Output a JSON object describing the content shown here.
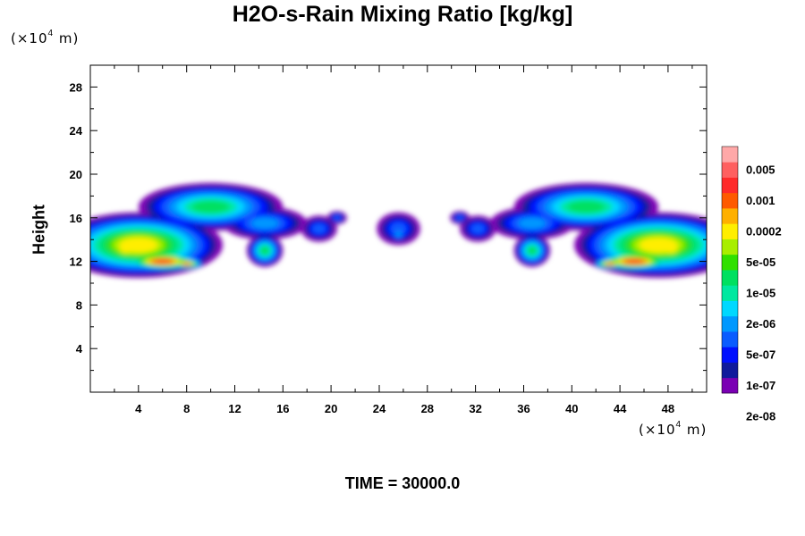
{
  "chart_data": {
    "type": "contour",
    "title": "H2O-s-Rain Mixing Ratio [kg/kg]",
    "ylabel": "Height",
    "xlabel": "",
    "x_unit": "(×10⁴ m)",
    "y_unit": "(×10⁴ m)",
    "unit_base": "(×10",
    "unit_exp": "4",
    "unit_tail": " m)",
    "xlim": [
      0,
      51.2
    ],
    "ylim": [
      0,
      30
    ],
    "xticks": [
      4,
      8,
      12,
      16,
      20,
      24,
      28,
      32,
      36,
      40,
      44,
      48
    ],
    "yticks": [
      4,
      8,
      12,
      16,
      20,
      24,
      28
    ],
    "colorbar": {
      "labels": [
        "0.005",
        "0.001",
        "0.0002",
        "5e-05",
        "1e-05",
        "2e-06",
        "5e-07",
        "1e-07",
        "2e-08"
      ],
      "colors": [
        "#7a00b3",
        "#101a9c",
        "#0010ff",
        "#0a5cff",
        "#0098ff",
        "#00d8ff",
        "#00e8a0",
        "#00e060",
        "#30e000",
        "#a8ee00",
        "#ffee00",
        "#ffb000",
        "#ff5a00",
        "#ff2a2a",
        "#ff6060",
        "#ffa8a8"
      ]
    },
    "cloud_blobs": [
      {
        "x": 4,
        "y": 13.5,
        "rx": 7,
        "ry": 3,
        "level": 10
      },
      {
        "x": 3,
        "y": 13.2,
        "rx": 2.5,
        "ry": 1.8,
        "level": 10
      },
      {
        "x": 6,
        "y": 12,
        "rx": 3.5,
        "ry": 0.9,
        "level": 13
      },
      {
        "x": 8,
        "y": 11.8,
        "rx": 1.5,
        "ry": 0.5,
        "level": 12
      },
      {
        "x": 10,
        "y": 17,
        "rx": 6,
        "ry": 2.2,
        "level": 7
      },
      {
        "x": 14.5,
        "y": 15.5,
        "rx": 3.5,
        "ry": 1.5,
        "level": 4
      },
      {
        "x": 14.5,
        "y": 13,
        "rx": 1.5,
        "ry": 1.5,
        "level": 7
      },
      {
        "x": 19,
        "y": 15,
        "rx": 1.5,
        "ry": 1.2,
        "level": 3
      },
      {
        "x": 20.5,
        "y": 16,
        "rx": 0.8,
        "ry": 0.6,
        "level": 3
      },
      {
        "x": 25.6,
        "y": 15,
        "rx": 1.8,
        "ry": 1.5,
        "level": 3
      },
      {
        "x": 25.6,
        "y": 14.5,
        "rx": 0.8,
        "ry": 0.8,
        "level": 4
      },
      {
        "x": 32.2,
        "y": 15,
        "rx": 1.5,
        "ry": 1.2,
        "level": 3
      },
      {
        "x": 30.7,
        "y": 16,
        "rx": 0.8,
        "ry": 0.6,
        "level": 3
      },
      {
        "x": 36.7,
        "y": 15.5,
        "rx": 3.5,
        "ry": 1.5,
        "level": 4
      },
      {
        "x": 36.7,
        "y": 13,
        "rx": 1.5,
        "ry": 1.5,
        "level": 7
      },
      {
        "x": 41.2,
        "y": 17,
        "rx": 6,
        "ry": 2.2,
        "level": 7
      },
      {
        "x": 47.2,
        "y": 13.5,
        "rx": 7,
        "ry": 3,
        "level": 10
      },
      {
        "x": 48.2,
        "y": 13.2,
        "rx": 2.5,
        "ry": 1.8,
        "level": 10
      },
      {
        "x": 45.2,
        "y": 12,
        "rx": 3.5,
        "ry": 0.9,
        "level": 13
      },
      {
        "x": 43.2,
        "y": 11.8,
        "rx": 1.5,
        "ry": 0.5,
        "level": 12
      }
    ]
  },
  "footer": {
    "time_label": "TIME = 30000.0"
  }
}
